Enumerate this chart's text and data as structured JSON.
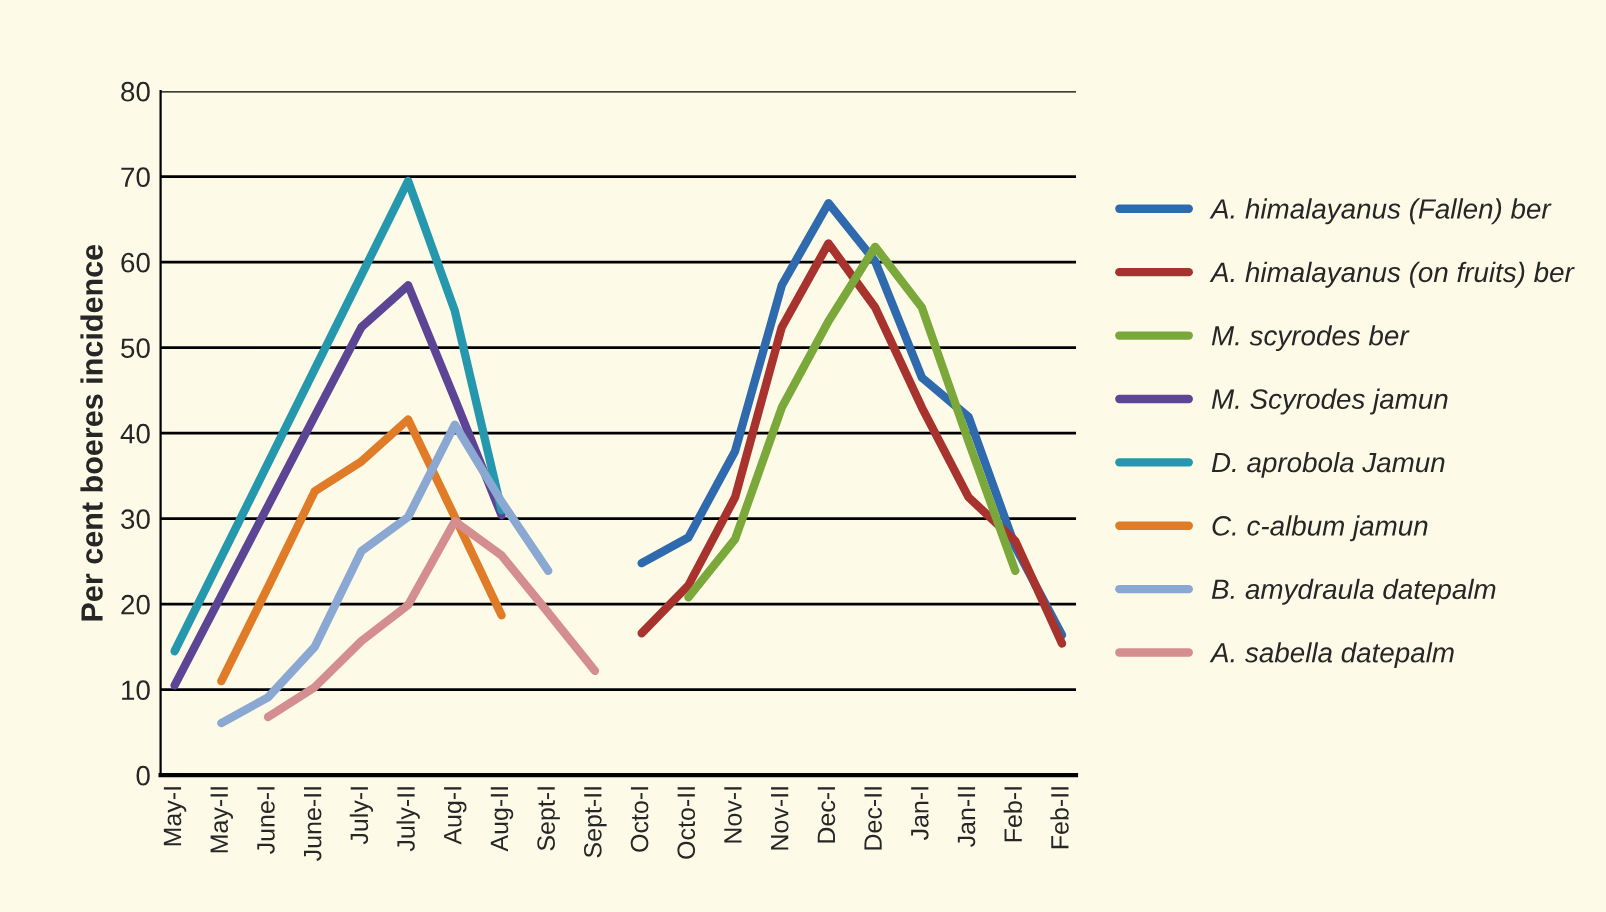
{
  "chart_data": {
    "type": "line",
    "ylabel": "Per cent boeres incidence",
    "categories": [
      "May-I",
      "May-II",
      "June-I",
      "June-II",
      "July-I",
      "July-II",
      "Aug-I",
      "Aug-II",
      "Sept-I",
      "Sept-II",
      "Octo-I",
      "Octo-II",
      "Nov-I",
      "Nov-II",
      "Dec-I",
      "Dec-II",
      "Jan-I",
      "Jan-II",
      "Feb-I",
      "Feb-II"
    ],
    "series": [
      {
        "name": "A. himalayanus (Fallen) ber",
        "color": "#2e6aad",
        "values": [
          null,
          null,
          null,
          null,
          null,
          null,
          null,
          null,
          null,
          null,
          24.8,
          27.8,
          37.9,
          57.3,
          66.9,
          60.1,
          46.5,
          41.9,
          26.7,
          16.4
        ]
      },
      {
        "name": "A. himalayanus (on fruits) ber",
        "color": "#a8332e",
        "values": [
          null,
          null,
          null,
          null,
          null,
          null,
          null,
          null,
          null,
          null,
          16.6,
          22.2,
          32.5,
          52.4,
          62.2,
          54.7,
          43,
          32.5,
          27.4,
          15.4
        ]
      },
      {
        "name": "M. scyrodes ber",
        "color": "#7ba83a",
        "values": [
          null,
          null,
          null,
          null,
          null,
          null,
          null,
          null,
          null,
          null,
          null,
          20.8,
          27.6,
          43,
          53.1,
          61.8,
          54.7,
          39,
          23.9,
          null
        ]
      },
      {
        "name": "M. Scyrodes jamun",
        "color": "#5d4595",
        "values": [
          10.5,
          21,
          31.5,
          42,
          52.4,
          57.3,
          44,
          30.4,
          null,
          null,
          null,
          null,
          null,
          null,
          null,
          null,
          null,
          null,
          null,
          null
        ]
      },
      {
        "name": "D. aprobola Jamun",
        "color": "#2698ad",
        "values": [
          14.5,
          25.5,
          36.5,
          47.5,
          58.5,
          69.5,
          54.3,
          31,
          null,
          null,
          null,
          null,
          null,
          null,
          null,
          null,
          null,
          null,
          null,
          null
        ]
      },
      {
        "name": "C. c-album jamun",
        "color": "#e07b28",
        "values": [
          null,
          11,
          22,
          33.2,
          36.7,
          41.6,
          30.2,
          18.7,
          null,
          null,
          null,
          null,
          null,
          null,
          null,
          null,
          null,
          null,
          null,
          null
        ]
      },
      {
        "name": "B. amydraula datepalm",
        "color": "#8aa8d2",
        "values": [
          null,
          6.1,
          9.1,
          15,
          26.2,
          30.2,
          41,
          32,
          23.9,
          null,
          null,
          null,
          null,
          null,
          null,
          null,
          null,
          null,
          null,
          null
        ]
      },
      {
        "name": "A. sabella datepalm",
        "color": "#d48e8f",
        "values": [
          null,
          null,
          6.8,
          10.3,
          15.7,
          19.9,
          29.7,
          25.7,
          19,
          12.2,
          null,
          null,
          null,
          null,
          null,
          null,
          null,
          null,
          null,
          null
        ]
      }
    ],
    "ylim": [
      0,
      80
    ],
    "yticks": [
      0,
      10,
      20,
      30,
      40,
      50,
      60,
      70,
      80
    ],
    "grid": "y",
    "legend": "right",
    "marker": "none",
    "line_style": "solid"
  }
}
